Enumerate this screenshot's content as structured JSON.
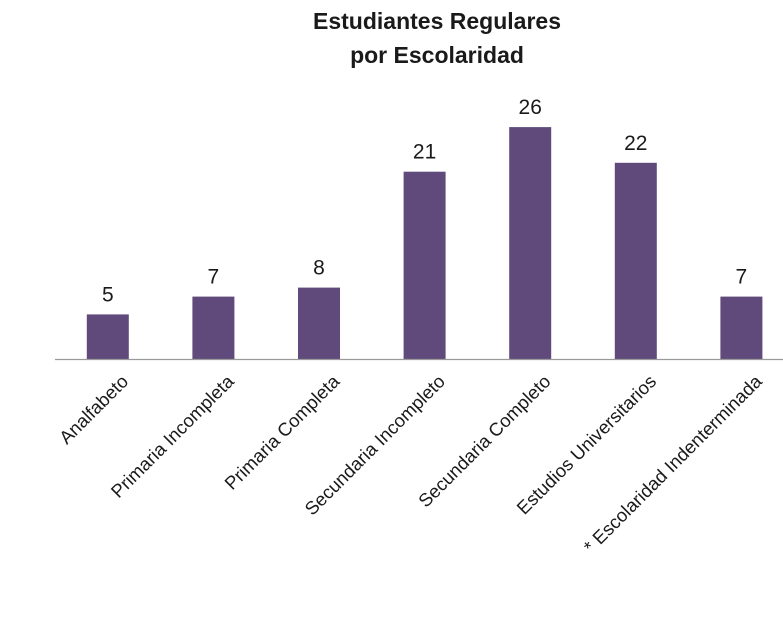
{
  "chart_data": {
    "type": "bar",
    "title": "Estudiantes Regulares por Escolaridad",
    "title_lines": [
      "Estudiantes Regulares",
      "por Escolaridad"
    ],
    "categories": [
      "Analfabeto",
      "Primaria Incompleta",
      "Primaria Completa",
      "Secundaria Incompleto",
      "Secundaria Completo",
      "Estudios Universitarios",
      "* Escolaridad Indenterminada"
    ],
    "values": [
      5,
      7,
      8,
      21,
      26,
      22,
      7
    ],
    "data_labels": [
      "5",
      "7",
      "8",
      "21",
      "26",
      "22",
      "7"
    ],
    "xlabel": "",
    "ylabel": "",
    "ylim": [
      0,
      26
    ],
    "grid": false,
    "legend": "none",
    "bar_color": "#604a7b",
    "axis_color": "#9a9a9a"
  }
}
